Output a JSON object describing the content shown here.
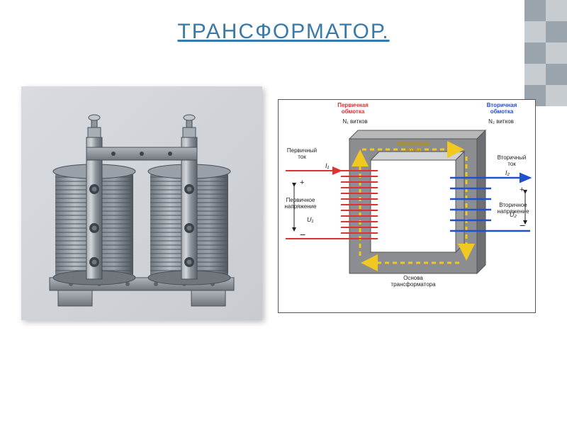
{
  "title": "ТРАНСФОРМАТОР.",
  "title_color": "#3a7aa8",
  "decoration": {
    "color_a": "#9aa4ad",
    "color_b": "#c7ccd1",
    "cols": 2,
    "rows": 5,
    "cell": 30
  },
  "photo": {
    "bg_top": "#d8dce0",
    "bg_bottom": "#c8ccd0",
    "metal_light": "#c0c6cc",
    "metal_mid": "#8d949c",
    "metal_dark": "#5d646c",
    "coil_light": "#a8aeb5",
    "coil_dark": "#6f767e"
  },
  "diagram": {
    "core_outer": "#8b8d90",
    "core_top": "#b6b8ba",
    "core_side": "#6d6f72",
    "core_inner": "#d0d2d4",
    "primary_color": "#e03030",
    "secondary_color": "#2050d0",
    "flux_color": "#f0c820",
    "text_color": "#222222",
    "labels": {
      "primary_winding": "Первичная\nобмотка",
      "primary_turns": "N₁ витков",
      "secondary_winding": "Вторичная\nобмотка",
      "secondary_turns": "N₂ витков",
      "primary_current": "Первичный\nток",
      "secondary_current": "Вторичный\nток",
      "primary_voltage": "Первичное\nнапряжение",
      "secondary_voltage": "Вторичное\nнапряжение",
      "I1": "I₁",
      "I2": "I₂",
      "U1": "U₁",
      "U2": "U₂",
      "flux": "Магнитный\nпоток",
      "base": "Основа\nтрансформатора"
    }
  }
}
